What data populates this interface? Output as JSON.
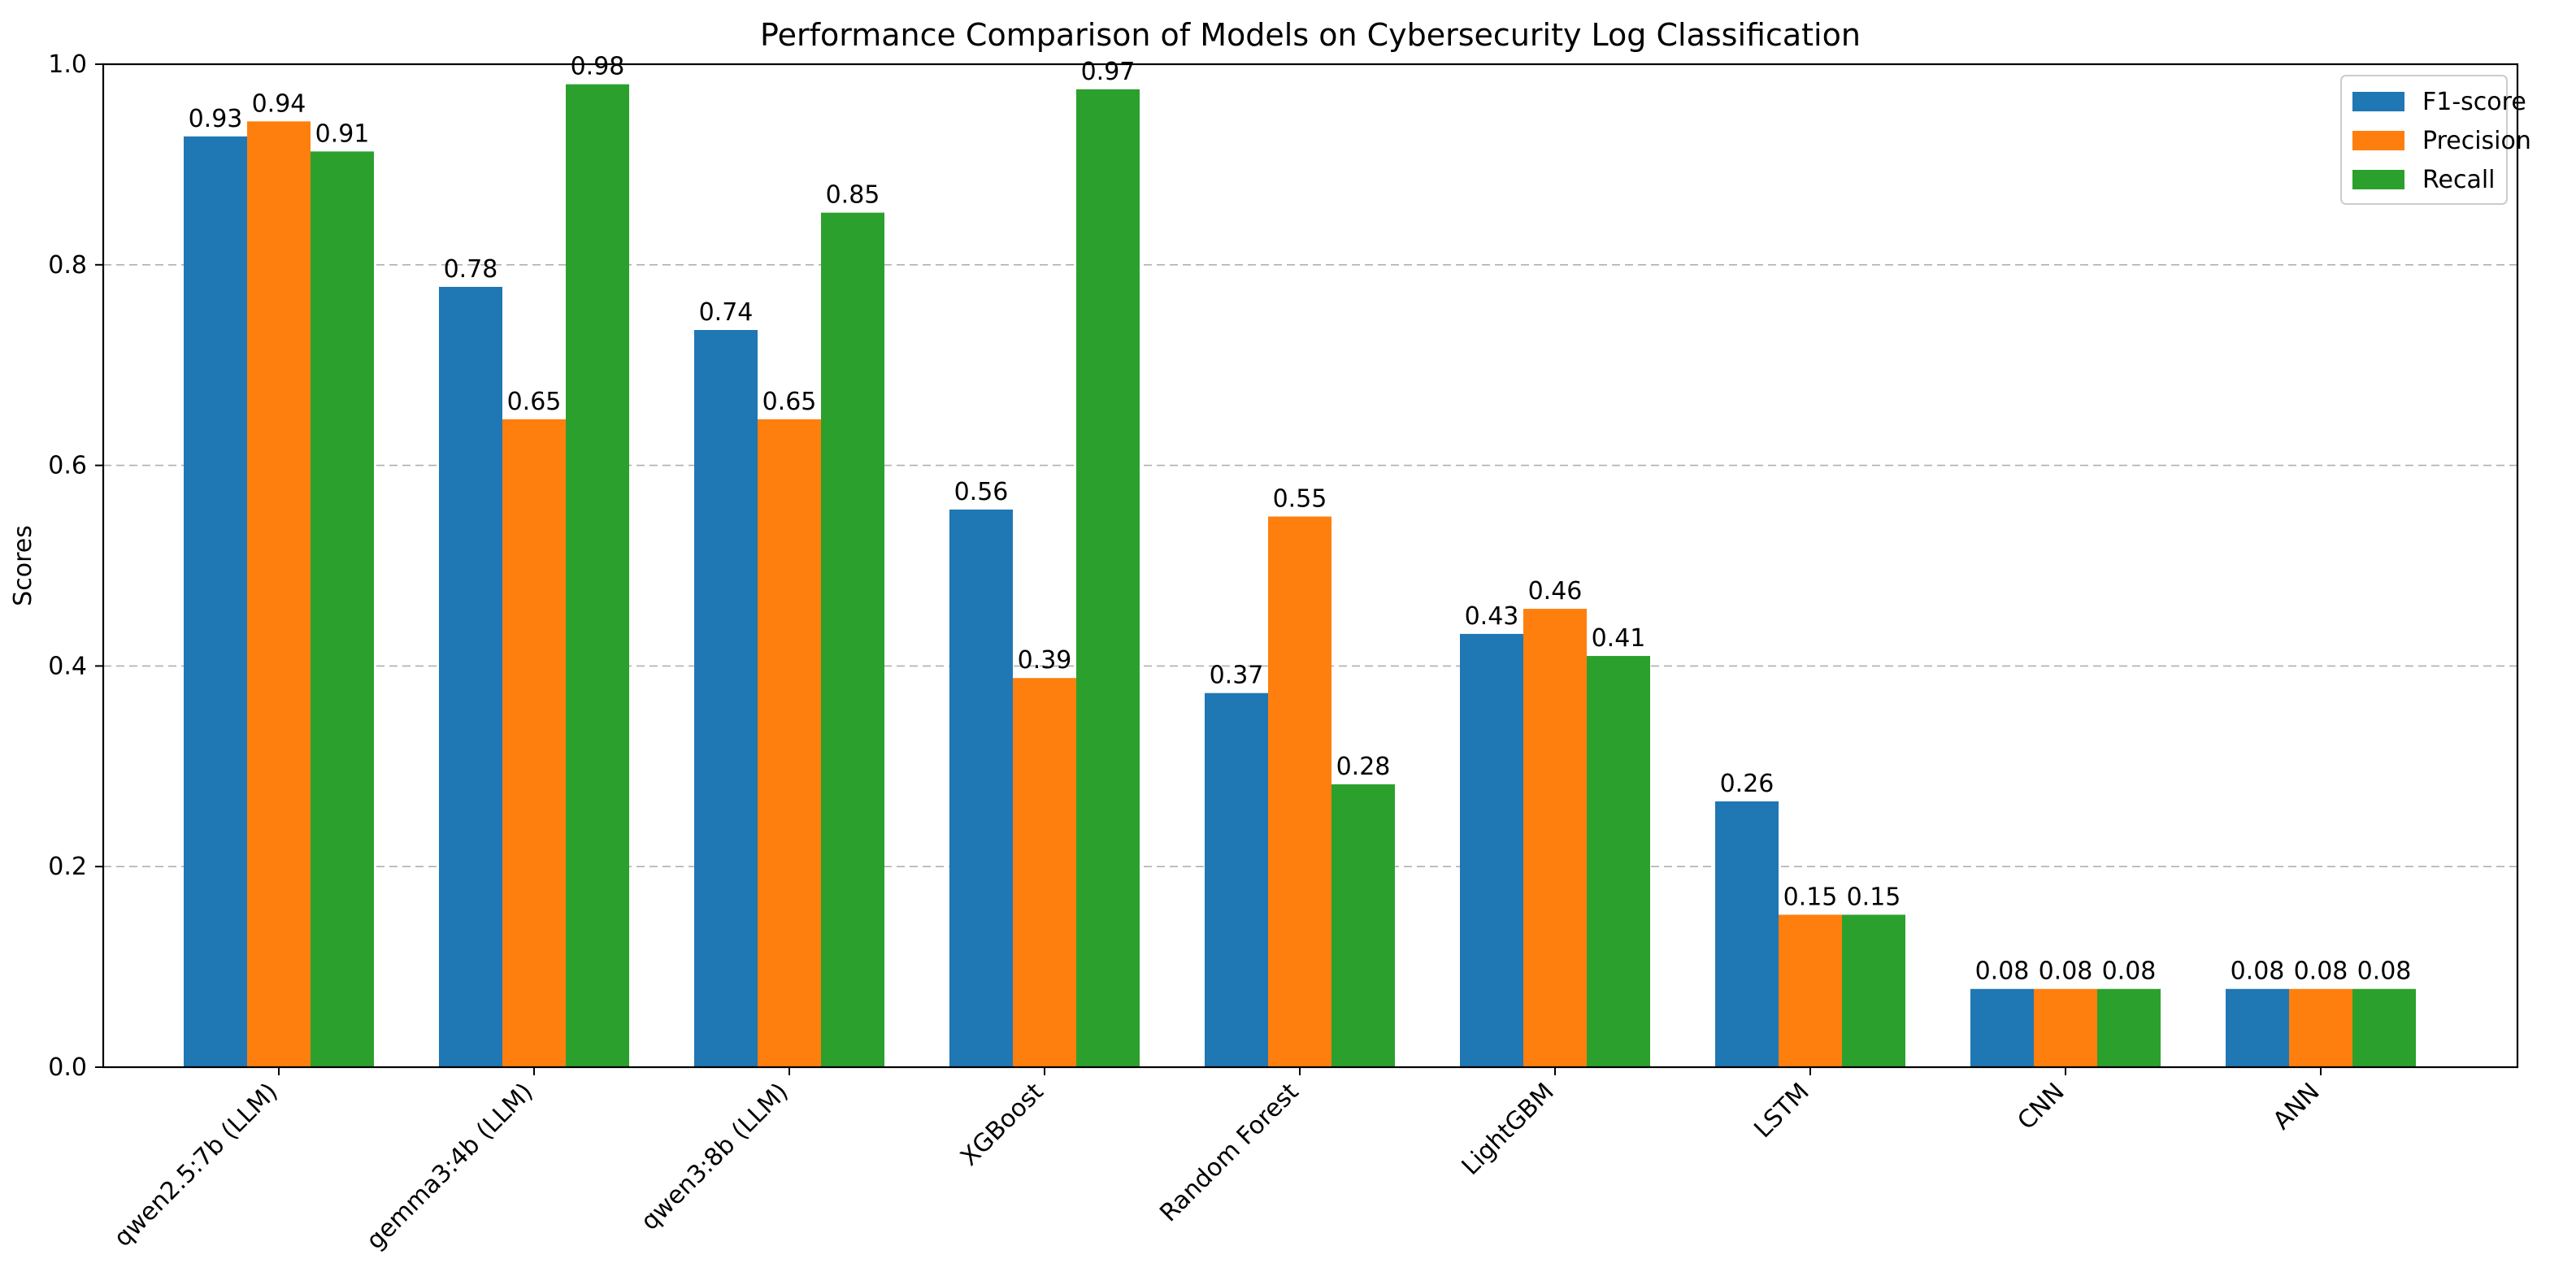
{
  "chart_data": {
    "type": "bar",
    "title": "Performance Comparison of Models on Cybersecurity Log Classification",
    "xlabel": "",
    "ylabel": "Scores",
    "ylim": [
      0,
      1.0
    ],
    "yticks": [
      0.0,
      0.2,
      0.4,
      0.6,
      0.8,
      1.0
    ],
    "ytick_labels": [
      "0.0",
      "0.2",
      "0.4",
      "0.6",
      "0.8",
      "1.0"
    ],
    "grid": "y-dashed",
    "legend_position": "top-right",
    "categories": [
      "qwen2.5:7b (LLM)",
      "gemma3:4b (LLM)",
      "qwen3:8b (LLM)",
      "XGBoost",
      "Random Forest",
      "LightGBM",
      "LSTM",
      "CNN",
      "ANN"
    ],
    "series": [
      {
        "name": "F1-score",
        "color": "#1f77b4",
        "values": [
          0.928,
          0.778,
          0.735,
          0.556,
          0.373,
          0.432,
          0.265,
          0.078,
          0.078
        ],
        "labels": [
          "0.93",
          "0.78",
          "0.74",
          "0.56",
          "0.37",
          "0.43",
          "0.26",
          "0.08",
          "0.08"
        ]
      },
      {
        "name": "Precision",
        "color": "#ff7f0e",
        "values": [
          0.943,
          0.646,
          0.646,
          0.388,
          0.549,
          0.457,
          0.152,
          0.078,
          0.078
        ],
        "labels": [
          "0.94",
          "0.65",
          "0.65",
          "0.39",
          "0.55",
          "0.46",
          "0.15",
          "0.08",
          "0.08"
        ]
      },
      {
        "name": "Recall",
        "color": "#2ca02c",
        "values": [
          0.913,
          0.98,
          0.852,
          0.975,
          0.282,
          0.41,
          0.152,
          0.078,
          0.078
        ],
        "labels": [
          "0.91",
          "0.98",
          "0.85",
          "0.97",
          "0.28",
          "0.41",
          "0.15",
          "0.08",
          "0.08"
        ]
      }
    ]
  }
}
